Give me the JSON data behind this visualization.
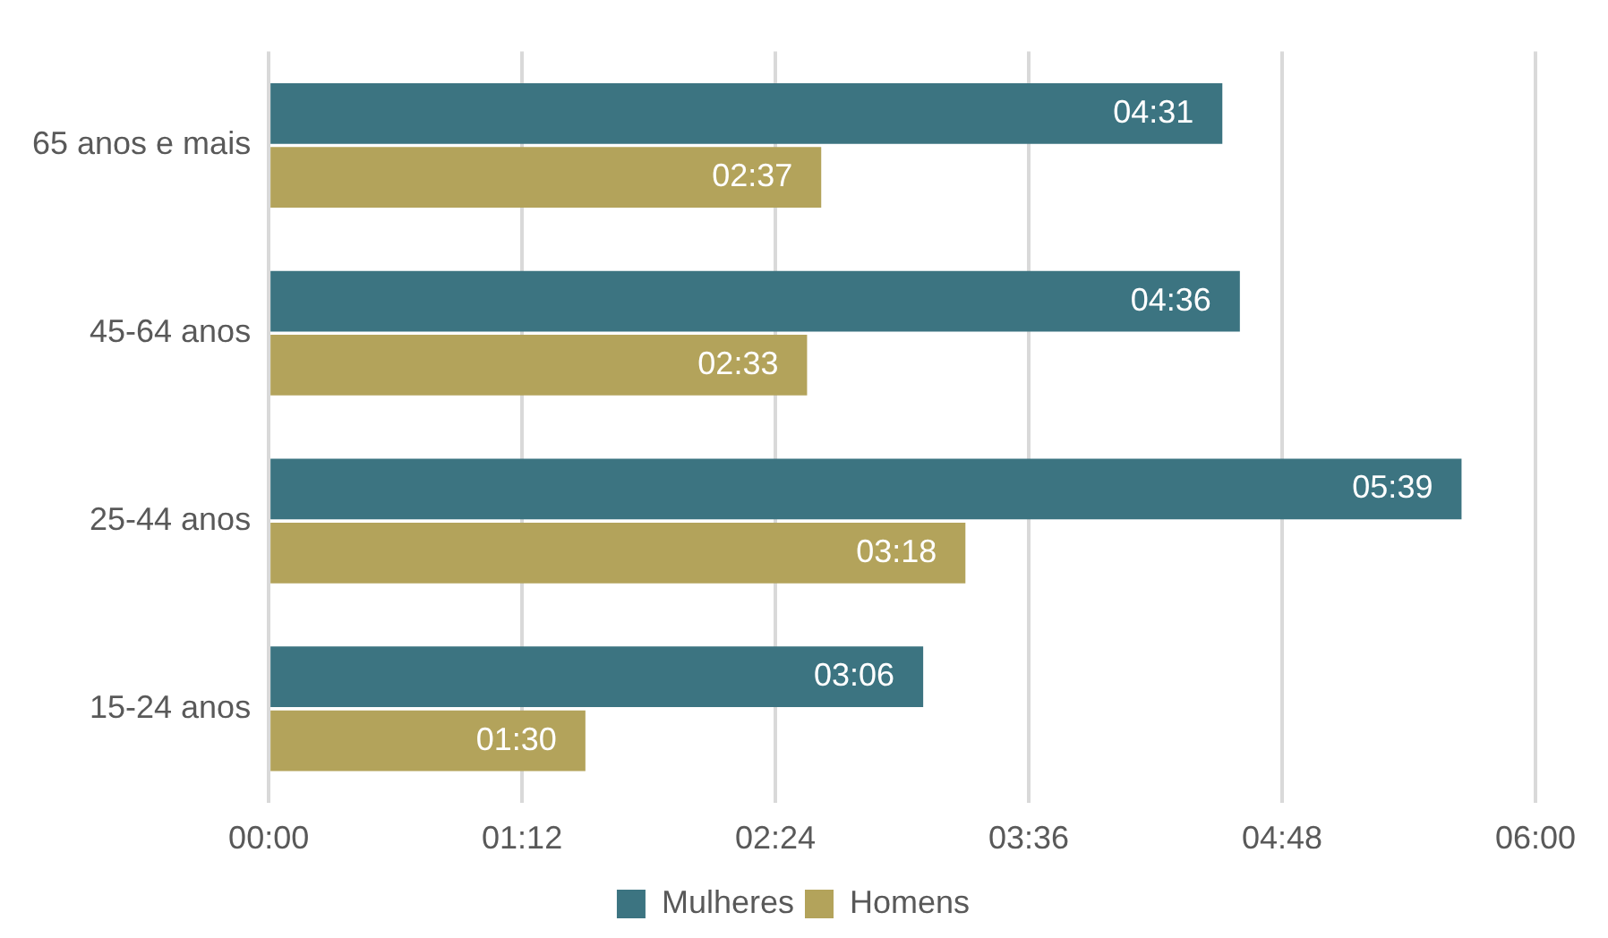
{
  "chart_data": {
    "type": "bar",
    "orientation": "horizontal",
    "categories": [
      "65 anos e mais",
      "45-64 anos",
      "25-44 anos",
      "15-24 anos"
    ],
    "series": [
      {
        "name": "Mulheres",
        "color": "#3c7481",
        "values": [
          4.517,
          4.6,
          5.65,
          3.1
        ],
        "value_labels": [
          "04:31",
          "04:36",
          "05:39",
          "03:06"
        ]
      },
      {
        "name": "Homens",
        "color": "#b3a35b",
        "values": [
          2.617,
          2.55,
          3.3,
          1.5
        ],
        "value_labels": [
          "02:37",
          "02:33",
          "03:18",
          "01:30"
        ]
      }
    ],
    "xlim": [
      0,
      6
    ],
    "xticks": [
      {
        "value": 0,
        "label": "00:00"
      },
      {
        "value": 1.2,
        "label": "01:12"
      },
      {
        "value": 2.4,
        "label": "02:24"
      },
      {
        "value": 3.6,
        "label": "03:36"
      },
      {
        "value": 4.8,
        "label": "04:48"
      },
      {
        "value": 6,
        "label": "06:00"
      }
    ],
    "grid": "x",
    "legend": "bottom"
  }
}
